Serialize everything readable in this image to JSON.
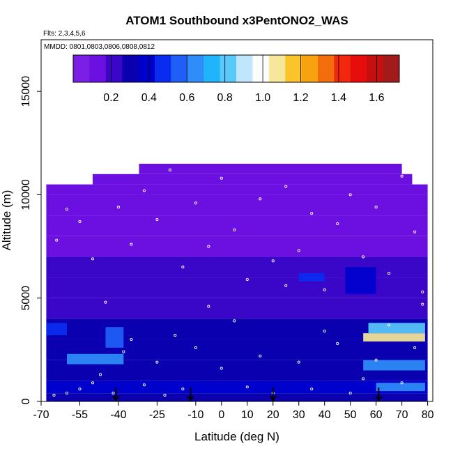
{
  "chart_data": {
    "type": "heatmap",
    "title": "ATOM1 Southbound x3PentONO2_WAS",
    "flights_note": "Flts: 2,3,4,5,6",
    "dates_note": "MMDD: 0801,0803,0806,0808,0812",
    "xlabel": "Latitude (deg N)",
    "ylabel": "Altitude (m)",
    "xlim": [
      -70,
      82
    ],
    "ylim": [
      0,
      17500
    ],
    "x_ticks": [
      -70,
      -55,
      -40,
      -25,
      -10,
      0,
      10,
      20,
      30,
      40,
      50,
      60,
      70,
      80
    ],
    "x_tick_labels": [
      "-70",
      "-55",
      "-40",
      "-25",
      "-10",
      "0",
      "10",
      "20",
      "30",
      "40",
      "50",
      "60",
      "70",
      "80"
    ],
    "y_ticks": [
      0,
      5000,
      10000,
      15000
    ],
    "y_tick_labels": [
      "0",
      "5000",
      "10000",
      "15000"
    ],
    "colorbar": {
      "range": [
        0,
        1.72
      ],
      "ticks": [
        0.2,
        0.4,
        0.6,
        0.8,
        1.0,
        1.2,
        1.4,
        1.6
      ],
      "tick_labels": [
        "0.2",
        "0.4",
        "0.6",
        "0.8",
        "1.0",
        "1.2",
        "1.4",
        "1.6"
      ],
      "colors": [
        "#7b1fe6",
        "#6b10e0",
        "#3a06c8",
        "#0a00b0",
        "#0000cd",
        "#0a2cf0",
        "#1f5ff7",
        "#2f8df9",
        "#22b4fa",
        "#59c9fb",
        "#bfe6fd",
        "#fbfdfd",
        "#f7e79a",
        "#fbc42a",
        "#f7a30f",
        "#f26d0c",
        "#f1280e",
        "#e60d0c",
        "#c5100f",
        "#a31a1a"
      ]
    },
    "altitude_bands_m": [
      {
        "bottom": 0,
        "top": 400,
        "value": 0.33
      },
      {
        "bottom": 400,
        "top": 1000,
        "value": 0.38
      },
      {
        "bottom": 1000,
        "top": 2000,
        "value": 0.34
      },
      {
        "bottom": 2000,
        "top": 3000,
        "value": 0.3
      },
      {
        "bottom": 3000,
        "top": 4000,
        "value": 0.27
      },
      {
        "bottom": 4000,
        "top": 5000,
        "value": 0.25
      },
      {
        "bottom": 5000,
        "top": 6000,
        "value": 0.21
      },
      {
        "bottom": 6000,
        "top": 7000,
        "value": 0.18
      },
      {
        "bottom": 7000,
        "top": 8000,
        "value": 0.15
      },
      {
        "bottom": 8000,
        "top": 9000,
        "value": 0.13
      },
      {
        "bottom": 9000,
        "top": 10000,
        "value": 0.12
      },
      {
        "bottom": 10000,
        "top": 10500,
        "value": 0.11
      },
      {
        "bottom": 10500,
        "top": 11000,
        "value": 0.1
      },
      {
        "bottom": 11000,
        "top": 11500,
        "value": 0.09
      }
    ],
    "latitude_coverage": [
      {
        "top_altitude_m": 10500,
        "lat_min": -68,
        "lat_max": 80
      },
      {
        "top_altitude_m": 11000,
        "lat_min": -50,
        "lat_max": 74
      },
      {
        "top_altitude_m": 11500,
        "lat_min": -32,
        "lat_max": 70
      }
    ],
    "highlights": [
      {
        "lat_min": -60,
        "lat_max": -38,
        "alt_min": 1800,
        "alt_max": 2300,
        "value": 0.62
      },
      {
        "lat_min": -45,
        "lat_max": -38,
        "alt_min": 2600,
        "alt_max": 3600,
        "value": 0.55
      },
      {
        "lat_min": -68,
        "lat_max": -60,
        "alt_min": 3200,
        "alt_max": 3800,
        "value": 0.45
      },
      {
        "lat_min": 55,
        "lat_max": 79,
        "alt_min": 2900,
        "alt_max": 3300,
        "value": 1.05
      },
      {
        "lat_min": 57,
        "lat_max": 79,
        "alt_min": 3300,
        "alt_max": 3800,
        "value": 0.8
      },
      {
        "lat_min": 55,
        "lat_max": 79,
        "alt_min": 1500,
        "alt_max": 2000,
        "value": 0.62
      },
      {
        "lat_min": 60,
        "lat_max": 79,
        "alt_min": 500,
        "alt_max": 900,
        "value": 0.62
      },
      {
        "lat_min": 48,
        "lat_max": 60,
        "alt_min": 5200,
        "alt_max": 6500,
        "value": 0.42
      },
      {
        "lat_min": 30,
        "lat_max": 40,
        "alt_min": 5800,
        "alt_max": 6200,
        "value": 0.48
      }
    ],
    "sample_points": [
      {
        "lat": -65,
        "alt": 300
      },
      {
        "lat": -60,
        "alt": 400
      },
      {
        "lat": -55,
        "alt": 600
      },
      {
        "lat": -50,
        "alt": 900
      },
      {
        "lat": -47,
        "alt": 1300
      },
      {
        "lat": -42,
        "alt": 400
      },
      {
        "lat": -38,
        "alt": 2400
      },
      {
        "lat": -35,
        "alt": 3000
      },
      {
        "lat": -30,
        "alt": 800
      },
      {
        "lat": -25,
        "alt": 1900
      },
      {
        "lat": -22,
        "alt": 300
      },
      {
        "lat": -18,
        "alt": 3200
      },
      {
        "lat": -15,
        "alt": 600
      },
      {
        "lat": -10,
        "alt": 2600
      },
      {
        "lat": -5,
        "alt": 4600
      },
      {
        "lat": 0,
        "alt": 1600
      },
      {
        "lat": 5,
        "alt": 3900
      },
      {
        "lat": 10,
        "alt": 700
      },
      {
        "lat": 15,
        "alt": 2200
      },
      {
        "lat": 20,
        "alt": 400
      },
      {
        "lat": 25,
        "alt": 5600
      },
      {
        "lat": 30,
        "alt": 1900
      },
      {
        "lat": 35,
        "alt": 600
      },
      {
        "lat": 40,
        "alt": 3400
      },
      {
        "lat": 45,
        "alt": 2800
      },
      {
        "lat": 50,
        "alt": 400
      },
      {
        "lat": 55,
        "alt": 1100
      },
      {
        "lat": 60,
        "alt": 2000
      },
      {
        "lat": 65,
        "alt": 3700
      },
      {
        "lat": 70,
        "alt": 900
      },
      {
        "lat": 75,
        "alt": 2600
      },
      {
        "lat": 78,
        "alt": 4700
      },
      {
        "lat": -64,
        "alt": 7800
      },
      {
        "lat": -60,
        "alt": 9300
      },
      {
        "lat": -55,
        "alt": 8700
      },
      {
        "lat": -50,
        "alt": 6900
      },
      {
        "lat": -45,
        "alt": 4800
      },
      {
        "lat": -40,
        "alt": 9400
      },
      {
        "lat": -35,
        "alt": 7600
      },
      {
        "lat": -30,
        "alt": 10200
      },
      {
        "lat": -25,
        "alt": 8800
      },
      {
        "lat": -20,
        "alt": 11200
      },
      {
        "lat": -15,
        "alt": 6500
      },
      {
        "lat": -10,
        "alt": 9600
      },
      {
        "lat": -5,
        "alt": 7500
      },
      {
        "lat": 0,
        "alt": 10800
      },
      {
        "lat": 5,
        "alt": 8300
      },
      {
        "lat": 10,
        "alt": 5900
      },
      {
        "lat": 15,
        "alt": 9800
      },
      {
        "lat": 20,
        "alt": 6800
      },
      {
        "lat": 25,
        "alt": 10400
      },
      {
        "lat": 30,
        "alt": 7300
      },
      {
        "lat": 35,
        "alt": 9100
      },
      {
        "lat": 40,
        "alt": 5400
      },
      {
        "lat": 45,
        "alt": 8600
      },
      {
        "lat": 50,
        "alt": 10000
      },
      {
        "lat": 55,
        "alt": 7000
      },
      {
        "lat": 60,
        "alt": 9400
      },
      {
        "lat": 65,
        "alt": 6200
      },
      {
        "lat": 70,
        "alt": 10900
      },
      {
        "lat": 75,
        "alt": 8200
      },
      {
        "lat": 78,
        "alt": 5300
      }
    ],
    "marker_arrows_lat": [
      -41,
      -12,
      20,
      61
    ]
  }
}
